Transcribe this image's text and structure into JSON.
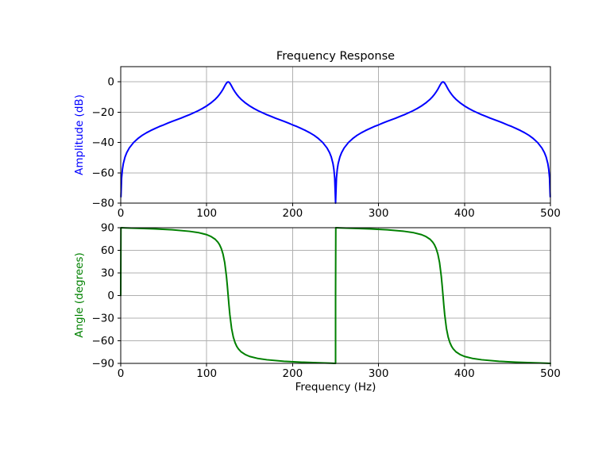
{
  "figure": {
    "background": "#ffffff",
    "text_color": "#000000",
    "grid_color": "#b0b0b0",
    "spine_color": "#000000"
  },
  "chart_data": [
    {
      "id": "amplitude-response",
      "type": "line",
      "title": "Frequency Response",
      "ylabel": "Amplitude (dB)",
      "ylabel_color": "#0000ff",
      "xlim": [
        0,
        500
      ],
      "ylim": [
        -80,
        10
      ],
      "grid": true,
      "xticks": [
        {
          "v": 0,
          "label": "0"
        },
        {
          "v": 100,
          "label": "100"
        },
        {
          "v": 200,
          "label": "200"
        },
        {
          "v": 300,
          "label": "300"
        },
        {
          "v": 400,
          "label": "400"
        },
        {
          "v": 500,
          "label": "500"
        }
      ],
      "yticks": [
        {
          "v": 0,
          "label": "0"
        },
        {
          "v": -20,
          "label": "−20"
        },
        {
          "v": -40,
          "label": "−40"
        },
        {
          "v": -60,
          "label": "−60"
        },
        {
          "v": -80,
          "label": "−80"
        }
      ],
      "series": [
        {
          "name": "magnitude_db",
          "color": "#0000ff",
          "line_width": 2,
          "mirror_x_about": 250,
          "points": [
            [
              0.25,
              -75.8
            ],
            [
              1,
              -63.6
            ],
            [
              2,
              -57.6
            ],
            [
              3,
              -54.0
            ],
            [
              5,
              -49.6
            ],
            [
              7,
              -46.7
            ],
            [
              10,
              -43.6
            ],
            [
              15,
              -40.0
            ],
            [
              20,
              -37.4
            ],
            [
              25,
              -35.3
            ],
            [
              30,
              -33.6
            ],
            [
              35,
              -32.1
            ],
            [
              40,
              -30.8
            ],
            [
              45,
              -29.5
            ],
            [
              50,
              -28.4
            ],
            [
              55,
              -27.2
            ],
            [
              60,
              -26.1
            ],
            [
              65,
              -25.0
            ],
            [
              70,
              -24.0
            ],
            [
              75,
              -22.8
            ],
            [
              80,
              -21.7
            ],
            [
              85,
              -20.4
            ],
            [
              90,
              -19.1
            ],
            [
              95,
              -17.6
            ],
            [
              100,
              -15.9
            ],
            [
              105,
              -13.9
            ],
            [
              110,
              -11.5
            ],
            [
              113,
              -9.7
            ],
            [
              115,
              -8.3
            ],
            [
              117,
              -6.7
            ],
            [
              119,
              -4.9
            ],
            [
              121,
              -2.8
            ],
            [
              122,
              -1.8
            ],
            [
              123,
              -0.9
            ],
            [
              124,
              -0.3
            ],
            [
              125,
              0
            ],
            [
              126,
              -0.3
            ],
            [
              127,
              -0.9
            ],
            [
              128,
              -1.8
            ],
            [
              129,
              -2.8
            ],
            [
              131,
              -4.9
            ],
            [
              133,
              -6.7
            ],
            [
              135,
              -8.3
            ],
            [
              137,
              -9.7
            ],
            [
              140,
              -11.5
            ],
            [
              145,
              -13.9
            ],
            [
              150,
              -15.9
            ],
            [
              155,
              -17.6
            ],
            [
              160,
              -19.1
            ],
            [
              165,
              -20.4
            ],
            [
              170,
              -21.7
            ],
            [
              175,
              -22.8
            ],
            [
              180,
              -24.0
            ],
            [
              185,
              -25.0
            ],
            [
              190,
              -26.1
            ],
            [
              195,
              -27.2
            ],
            [
              200,
              -28.4
            ],
            [
              205,
              -29.5
            ],
            [
              210,
              -30.8
            ],
            [
              215,
              -32.1
            ],
            [
              220,
              -33.6
            ],
            [
              225,
              -35.3
            ],
            [
              230,
              -37.4
            ],
            [
              235,
              -40.0
            ],
            [
              240,
              -43.6
            ],
            [
              243,
              -46.7
            ],
            [
              245,
              -49.6
            ],
            [
              247,
              -54.0
            ],
            [
              248,
              -57.6
            ],
            [
              249,
              -63.6
            ],
            [
              249.75,
              -75.8
            ],
            [
              250,
              -80
            ]
          ]
        }
      ]
    },
    {
      "id": "phase-response",
      "type": "line",
      "xlabel": "Frequency (Hz)",
      "ylabel": "Angle (degrees)",
      "ylabel_color": "#008000",
      "xlim": [
        0,
        500
      ],
      "ylim": [
        -90,
        90
      ],
      "grid": true,
      "xticks": [
        {
          "v": 0,
          "label": "0"
        },
        {
          "v": 100,
          "label": "100"
        },
        {
          "v": 200,
          "label": "200"
        },
        {
          "v": 300,
          "label": "300"
        },
        {
          "v": 400,
          "label": "400"
        },
        {
          "v": 500,
          "label": "500"
        }
      ],
      "yticks": [
        {
          "v": 90,
          "label": "90"
        },
        {
          "v": 60,
          "label": "60"
        },
        {
          "v": 30,
          "label": "30"
        },
        {
          "v": 0,
          "label": "0"
        },
        {
          "v": -30,
          "label": "−30"
        },
        {
          "v": -60,
          "label": "−60"
        },
        {
          "v": -90,
          "label": "−90"
        }
      ],
      "series": [
        {
          "name": "phase_deg",
          "color": "#008000",
          "line_width": 2,
          "repeat_x_offset": 250,
          "points": [
            [
              0,
              0
            ],
            [
              0.25,
              90
            ],
            [
              5,
              89.8
            ],
            [
              20,
              89.2
            ],
            [
              40,
              88.4
            ],
            [
              60,
              87.2
            ],
            [
              80,
              85.2
            ],
            [
              90,
              83.6
            ],
            [
              100,
              80.8
            ],
            [
              105,
              78.4
            ],
            [
              110,
              74.6
            ],
            [
              113,
              70.9
            ],
            [
              115,
              67.4
            ],
            [
              117,
              62.4
            ],
            [
              119,
              55.1
            ],
            [
              121,
              43.7
            ],
            [
              123,
              25.5
            ],
            [
              124,
              13.4
            ],
            [
              125,
              0
            ],
            [
              126,
              -13.4
            ],
            [
              127,
              -25.5
            ],
            [
              129,
              -43.7
            ],
            [
              131,
              -55.1
            ],
            [
              133,
              -62.4
            ],
            [
              135,
              -67.4
            ],
            [
              137,
              -70.9
            ],
            [
              140,
              -74.6
            ],
            [
              145,
              -78.4
            ],
            [
              150,
              -80.8
            ],
            [
              160,
              -83.6
            ],
            [
              170,
              -85.2
            ],
            [
              190,
              -87.2
            ],
            [
              210,
              -88.4
            ],
            [
              230,
              -89.2
            ],
            [
              245,
              -89.8
            ],
            [
              249.75,
              -90
            ],
            [
              250,
              -90
            ]
          ]
        }
      ]
    }
  ]
}
